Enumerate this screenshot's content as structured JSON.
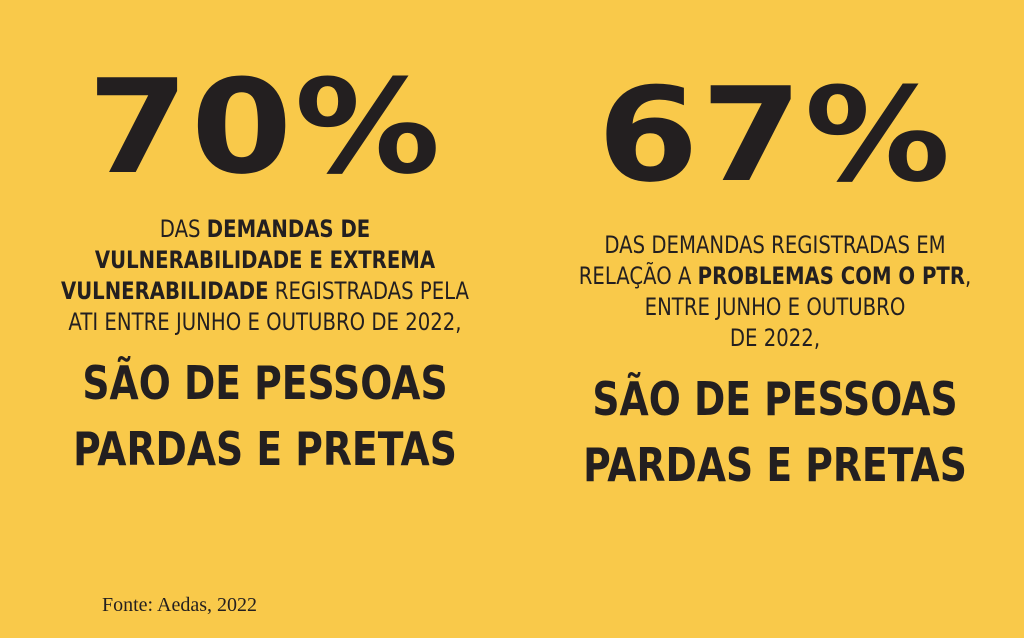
{
  "left": {
    "percent": "70%",
    "desc": {
      "p1": "DAS ",
      "b1": "DEMANDAS DE",
      "b2": "VULNERABILIDADE E EXTREMA",
      "b3": "VULNERABILIDADE",
      "p2": " REGISTRADAS PELA",
      "p3": "ATI ENTRE JUNHO E OUTUBRO DE 2022,"
    },
    "headline_line1": "SÃO DE PESSOAS",
    "headline_line2": "PARDAS E PRETAS"
  },
  "right": {
    "percent": "67%",
    "desc": {
      "p1": "DAS DEMANDAS REGISTRADAS EM",
      "p2": "RELAÇÃO A ",
      "b1": "PROBLEMAS COM O PTR",
      "p3": ",",
      "p4": "ENTRE JUNHO E OUTUBRO",
      "p5": "DE 2022,"
    },
    "headline_line1": "SÃO DE PESSOAS",
    "headline_line2": "PARDAS E PRETAS"
  },
  "source": "Fonte: Aedas, 2022",
  "colors": {
    "background": "#f9c94a",
    "text": "#231f20"
  }
}
